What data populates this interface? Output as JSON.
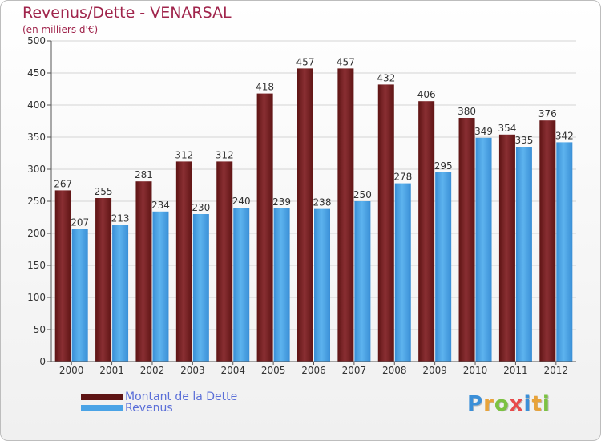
{
  "chart_data": {
    "type": "bar",
    "title": "Revenus/Dette - VENARSAL",
    "subtitle": "(en milliers d'€)",
    "categories": [
      "2000",
      "2001",
      "2002",
      "2003",
      "2004",
      "2005",
      "2006",
      "2007",
      "2008",
      "2009",
      "2010",
      "2011",
      "2012"
    ],
    "series": [
      {
        "name": "Montant de la Dette",
        "color": "#7a1f1f",
        "values": [
          267,
          255,
          281,
          312,
          312,
          418,
          457,
          457,
          432,
          406,
          380,
          354,
          376
        ]
      },
      {
        "name": "Revenus",
        "color": "#4aa3e6",
        "values": [
          207,
          213,
          234,
          230,
          240,
          239,
          238,
          250,
          278,
          295,
          349,
          335,
          342
        ]
      }
    ],
    "ylim": [
      0,
      500
    ],
    "yticks": [
      0,
      50,
      100,
      150,
      200,
      250,
      300,
      350,
      400,
      450,
      500
    ],
    "grid": true,
    "legend": "bottom-left"
  },
  "logo": {
    "letters": [
      {
        "ch": "P",
        "color": "#3b8fd8"
      },
      {
        "ch": "r",
        "color": "#e8a33a"
      },
      {
        "ch": "o",
        "color": "#7cc242"
      },
      {
        "ch": "x",
        "color": "#e84b4b"
      },
      {
        "ch": "i",
        "color": "#3b8fd8"
      },
      {
        "ch": "t",
        "color": "#e8a33a"
      },
      {
        "ch": "i",
        "color": "#7cc242"
      }
    ]
  }
}
